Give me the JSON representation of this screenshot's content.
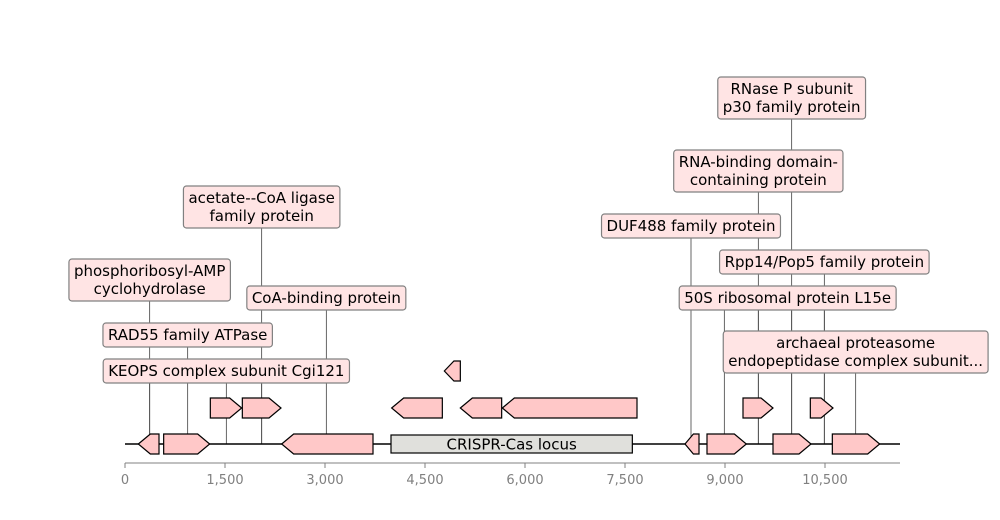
{
  "track": {
    "locus_label": "CRISPR-Cas locus",
    "x_axis": {
      "range": [
        0,
        11600
      ],
      "ticks": [
        {
          "value": 0,
          "label": "0"
        },
        {
          "value": 1500,
          "label": "1,500"
        },
        {
          "value": 3000,
          "label": "3,000"
        },
        {
          "value": 4500,
          "label": "4,500"
        },
        {
          "value": 6000,
          "label": "6,000"
        },
        {
          "value": 7500,
          "label": "7,500"
        },
        {
          "value": 9000,
          "label": "9,000"
        },
        {
          "value": 10500,
          "label": "10,500"
        }
      ]
    },
    "locus": {
      "start": 3990,
      "end": 7610
    },
    "genes": [
      {
        "start": 200,
        "end": 510,
        "strand": -1,
        "row": 0
      },
      {
        "start": 580,
        "end": 1270,
        "strand": 1,
        "row": 0
      },
      {
        "start": 2350,
        "end": 3720,
        "strand": -1,
        "row": 0
      },
      {
        "start": 8400,
        "end": 8610,
        "strand": -1,
        "row": 0
      },
      {
        "start": 8730,
        "end": 9320,
        "strand": 1,
        "row": 0
      },
      {
        "start": 9720,
        "end": 10290,
        "strand": 1,
        "row": 0
      },
      {
        "start": 10610,
        "end": 11320,
        "strand": 1,
        "row": 0
      },
      {
        "start": 1280,
        "end": 1750,
        "strand": 1,
        "row": 1
      },
      {
        "start": 1760,
        "end": 2340,
        "strand": 1,
        "row": 1
      },
      {
        "start": 4000,
        "end": 4760,
        "strand": -1,
        "row": 1
      },
      {
        "start": 5030,
        "end": 5650,
        "strand": -1,
        "row": 1
      },
      {
        "start": 5660,
        "end": 7680,
        "strand": -1,
        "row": 1
      },
      {
        "start": 9270,
        "end": 9720,
        "strand": 1,
        "row": 1
      },
      {
        "start": 10280,
        "end": 10620,
        "strand": 1,
        "row": 1
      },
      {
        "start": 4790,
        "end": 5030,
        "strand": -1,
        "row": 2
      }
    ],
    "annotations": [
      {
        "lines": [
          "KEOPS complex subunit Cgi121"
        ],
        "gene_x": 370,
        "box_x": 1520,
        "level": 0
      },
      {
        "lines": [
          "RAD55 family ATPase"
        ],
        "gene_x": 940,
        "box_x": 940,
        "level": 1
      },
      {
        "lines": [
          "phosphoribosyl-AMP",
          "cyclohydrolase"
        ],
        "gene_x": 370,
        "box_x": 370,
        "level": 2
      },
      {
        "lines": [
          "acetate--CoA ligase",
          "family protein"
        ],
        "gene_x": 2050,
        "box_x": 2050,
        "level": 3
      },
      {
        "lines": [
          "CoA-binding protein"
        ],
        "gene_x": 3020,
        "box_x": 3020,
        "level": 4
      },
      {
        "lines": [
          "archaeal proteasome",
          "endopeptidase complex subunit..."
        ],
        "gene_x": 10960,
        "box_x": 10960,
        "level": 5
      },
      {
        "lines": [
          "50S ribosomal protein L15e"
        ],
        "gene_x": 8990,
        "box_x": 9940,
        "level": 6
      },
      {
        "lines": [
          "Rpp14/Pop5 family protein"
        ],
        "gene_x": 10490,
        "box_x": 10490,
        "level": 7
      },
      {
        "lines": [
          "DUF488 family protein"
        ],
        "gene_x": 8490,
        "box_x": 8490,
        "level": 8
      },
      {
        "lines": [
          "RNA-binding domain-",
          "containing protein"
        ],
        "gene_x": 9500,
        "box_x": 9500,
        "level": 9
      },
      {
        "lines": [
          "RNase P subunit",
          "p30 family protein"
        ],
        "gene_x": 10000,
        "box_x": 10000,
        "level": 10
      }
    ],
    "extra_leaders": [
      {
        "gene_x": 1520,
        "level": 0
      },
      {
        "gene_x": 2050,
        "level": 0
      },
      {
        "gene_x": 9500,
        "level": 6
      },
      {
        "gene_x": 10000,
        "level": 6
      },
      {
        "gene_x": 10490,
        "level": 6
      }
    ]
  }
}
